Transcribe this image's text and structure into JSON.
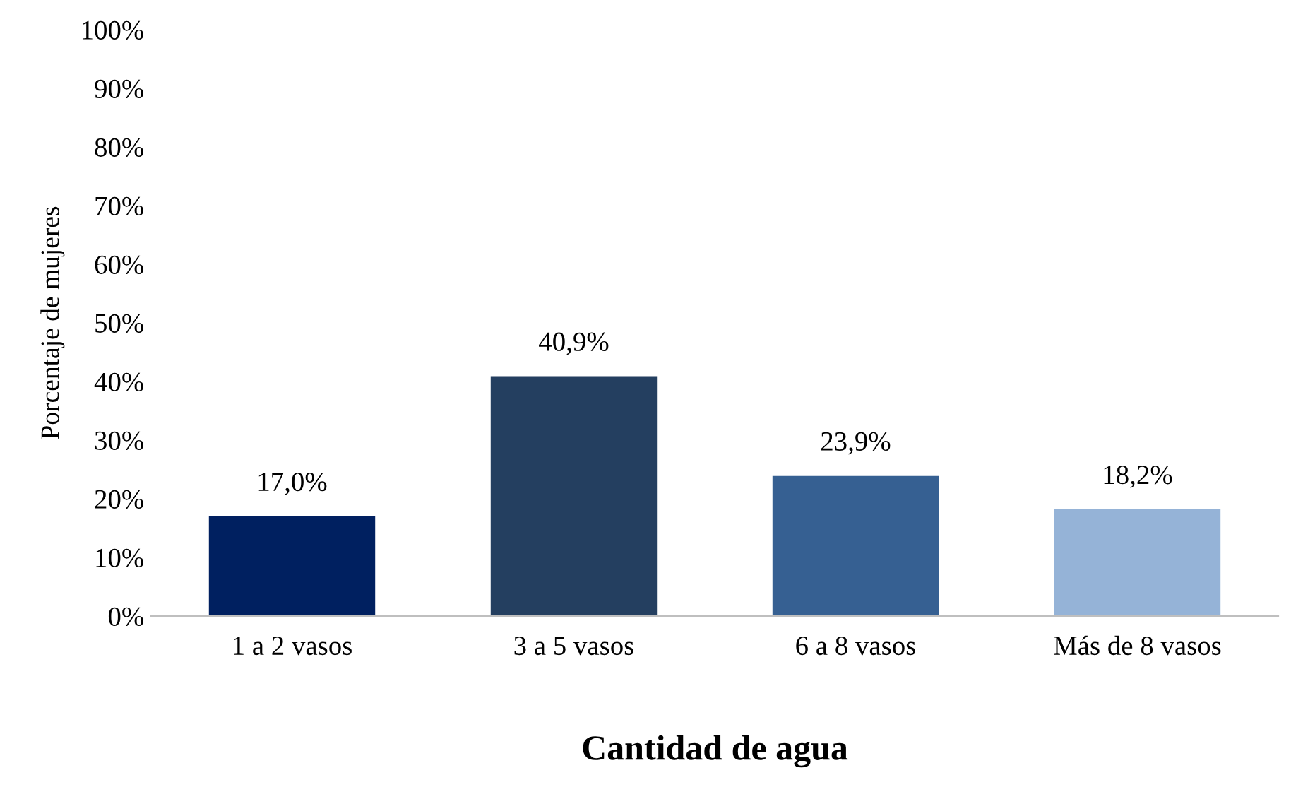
{
  "chart_data": {
    "type": "bar",
    "xlabel": "Cantidad de agua",
    "ylabel": "Porcentaje de mujeres",
    "categories": [
      "1 a 2 vasos",
      "3 a 5 vasos",
      "6 a 8 vasos",
      "Más de 8 vasos"
    ],
    "values": [
      17.0,
      40.9,
      23.9,
      18.2
    ],
    "colors": [
      "#002060",
      "#243f60",
      "#366092",
      "#95b3d7"
    ],
    "value_labels": [
      "17,0%",
      "40,9%",
      "23,9%",
      "18,2%"
    ],
    "ylim": [
      0,
      100
    ],
    "yticks": [
      {
        "value": 0,
        "label": "0%"
      },
      {
        "value": 10,
        "label": "10%"
      },
      {
        "value": 20,
        "label": "20%"
      },
      {
        "value": 30,
        "label": "30%"
      },
      {
        "value": 40,
        "label": "40%"
      },
      {
        "value": 50,
        "label": "50%"
      },
      {
        "value": 60,
        "label": "60%"
      },
      {
        "value": 70,
        "label": "70%"
      },
      {
        "value": 80,
        "label": "80%"
      },
      {
        "value": 90,
        "label": "90%"
      },
      {
        "value": 100,
        "label": "100%"
      }
    ],
    "grid": false,
    "legend": false
  }
}
